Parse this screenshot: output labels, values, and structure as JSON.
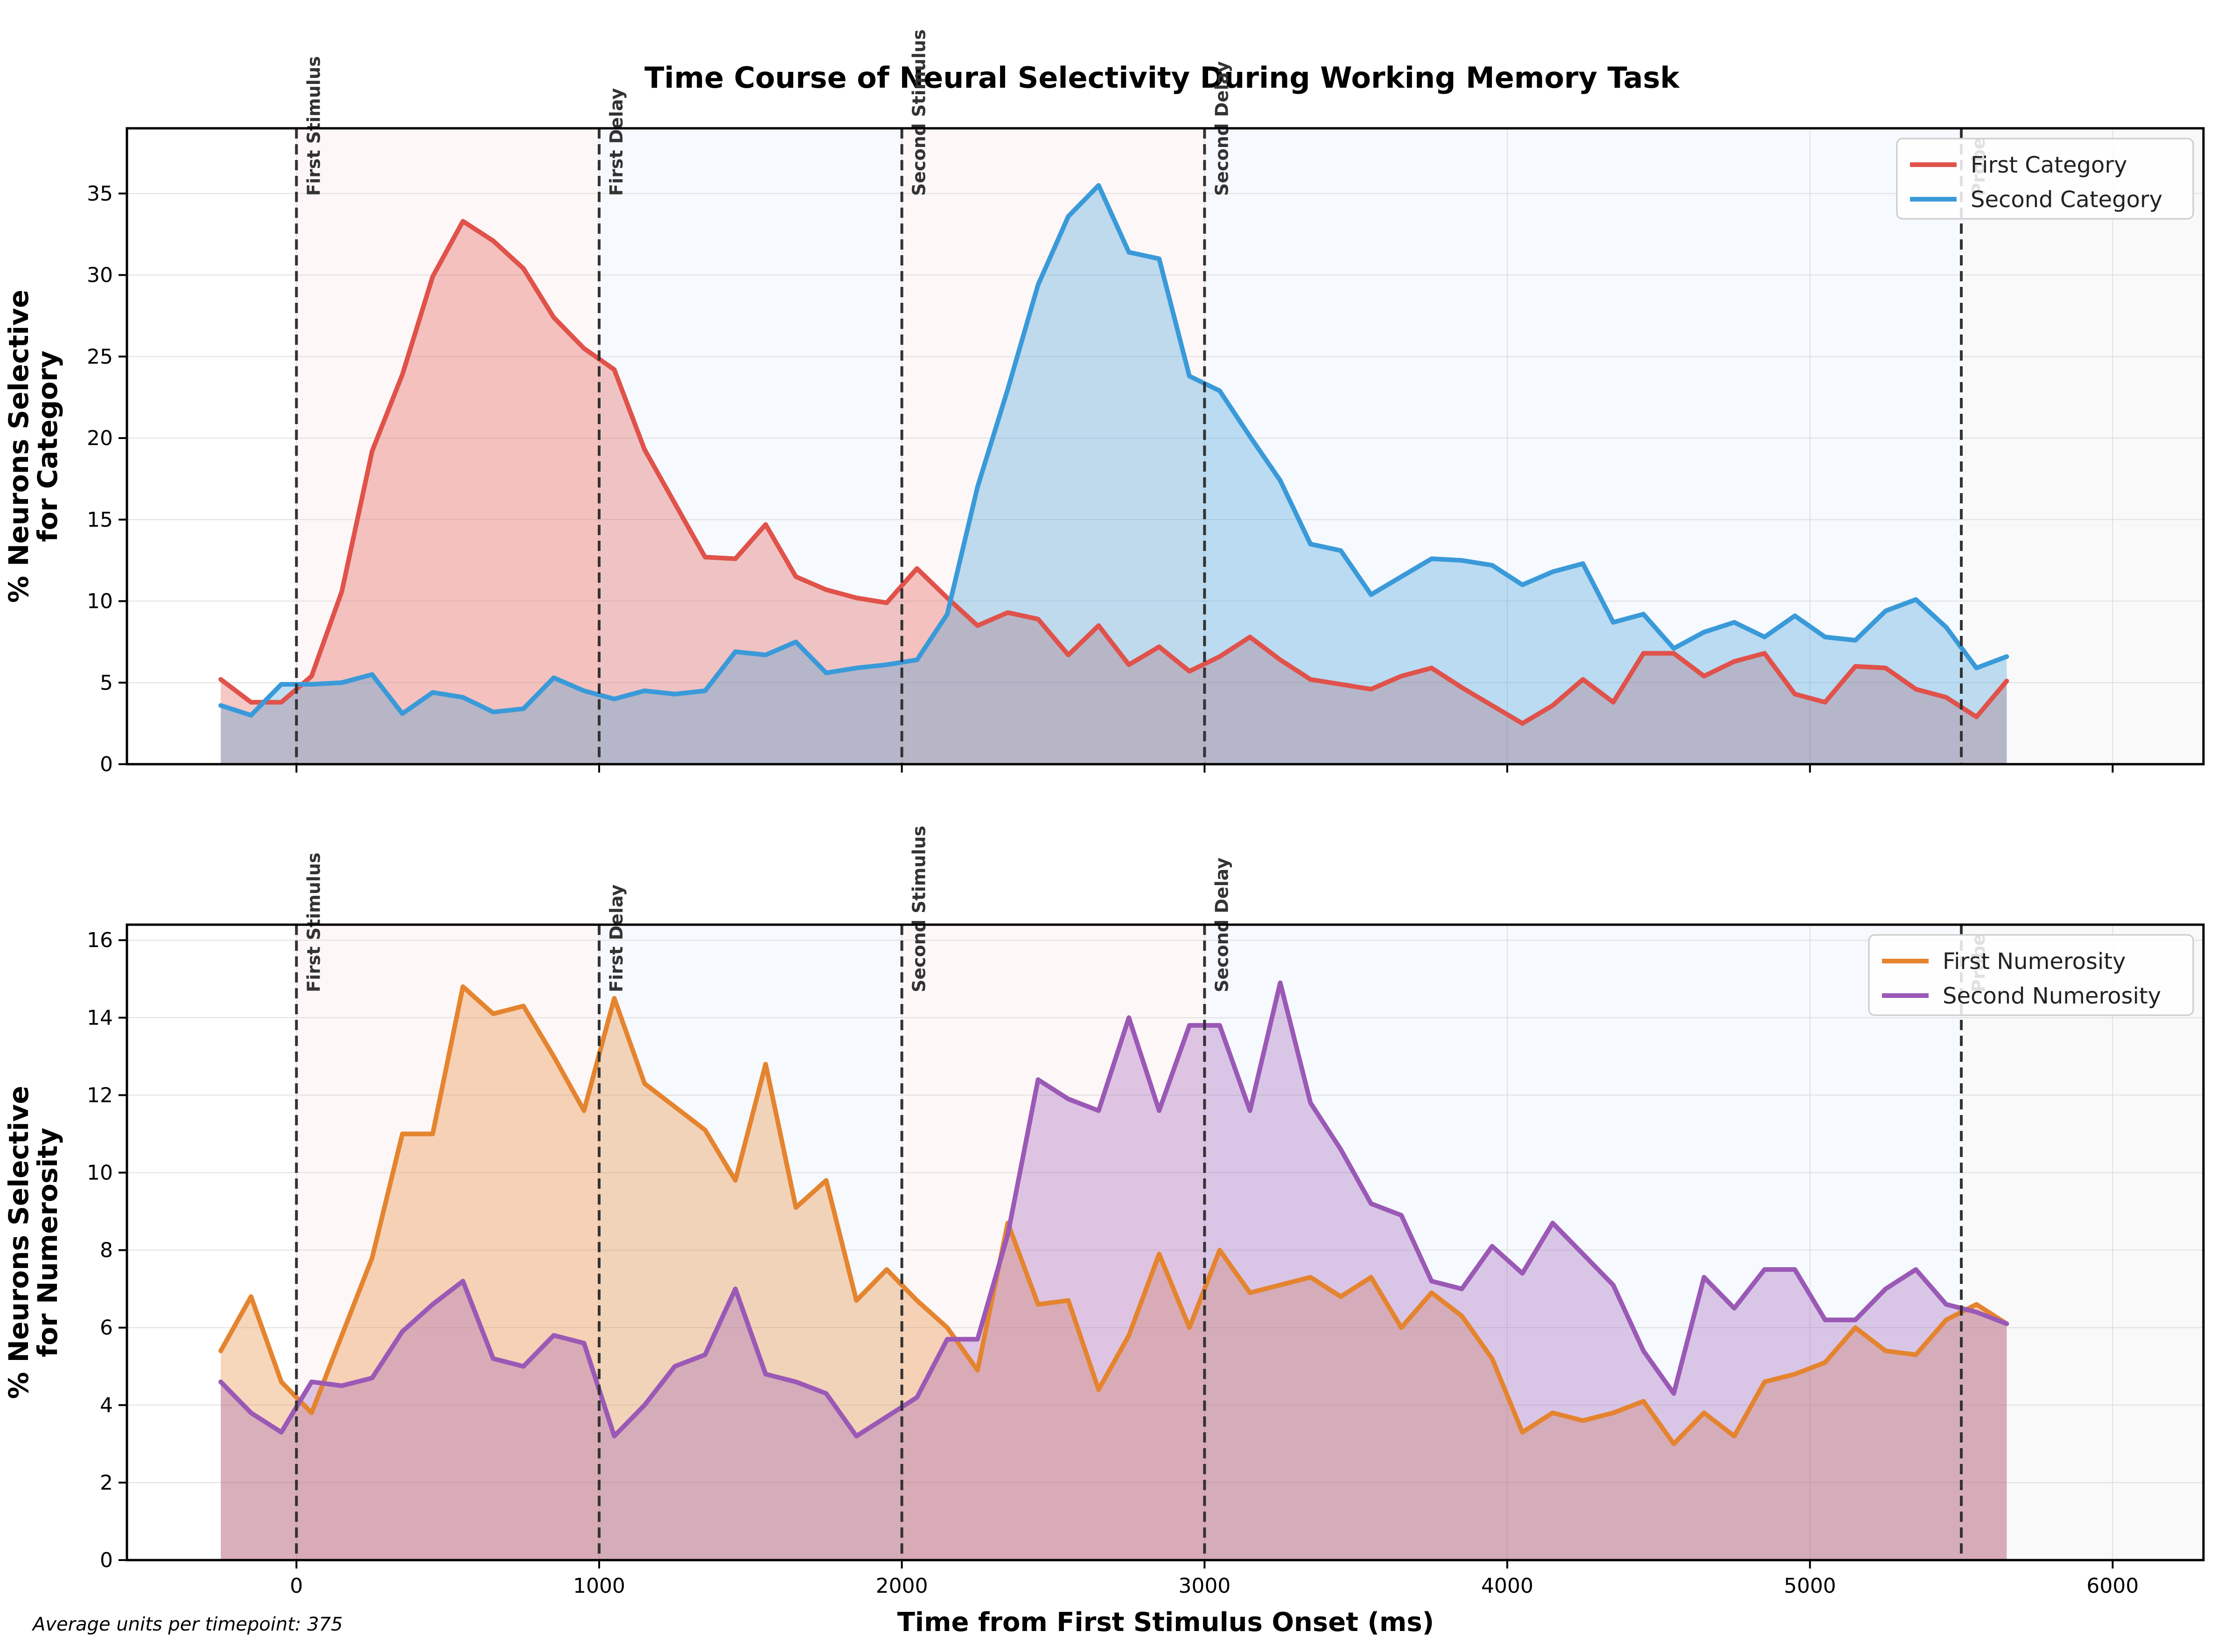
{
  "chart_data": {
    "type": "line",
    "title": "Time Course of Neural Selectivity During Working Memory Task",
    "xlabel": "Time from First Stimulus Onset (ms)",
    "xlim": [
      -560,
      6300
    ],
    "xticks": [
      0,
      1000,
      2000,
      3000,
      4000,
      5000,
      6000
    ],
    "grid": true,
    "footnote": "Average units per timepoint: 375",
    "events": [
      {
        "label": "First Stimulus",
        "x": 0
      },
      {
        "label": "First Delay",
        "x": 1000
      },
      {
        "label": "Second Stimulus",
        "x": 2000
      },
      {
        "label": "Second Delay",
        "x": 3000
      },
      {
        "label": "Probe",
        "x": 5500
      }
    ],
    "epoch_shading": [
      {
        "from": 0,
        "to": 1000,
        "color": "#fdeeee"
      },
      {
        "from": 1000,
        "to": 2000,
        "color": "#eaf2fa"
      },
      {
        "from": 2000,
        "to": 3000,
        "color": "#fdeeee"
      },
      {
        "from": 3000,
        "to": 5500,
        "color": "#eaf2fa"
      },
      {
        "from": 5500,
        "to": 6300,
        "color": "#f1f1f1"
      }
    ],
    "x": [
      -250,
      -150,
      -50,
      50,
      150,
      250,
      350,
      450,
      550,
      650,
      750,
      850,
      950,
      1050,
      1150,
      1250,
      1350,
      1450,
      1550,
      1650,
      1750,
      1850,
      1950,
      2050,
      2150,
      2250,
      2350,
      2450,
      2550,
      2650,
      2750,
      2850,
      2950,
      3050,
      3150,
      3250,
      3350,
      3450,
      3550,
      3650,
      3750,
      3850,
      3950,
      4050,
      4150,
      4250,
      4350,
      4450,
      4550,
      4650,
      4750,
      4850,
      4950,
      5050,
      5150,
      5250,
      5350,
      5450,
      5550,
      5650
    ],
    "panels": [
      {
        "ylabel_line1": "% Neurons Selective",
        "ylabel_line2": "for Category",
        "ylim": [
          0,
          39
        ],
        "yticks": [
          0,
          5,
          10,
          15,
          20,
          25,
          30,
          35
        ],
        "legend_position": "upper right",
        "series": [
          {
            "name": "First Category",
            "color": "#e0524a",
            "values": [
              5.2,
              3.8,
              3.8,
              5.4,
              10.6,
              19.2,
              23.9,
              29.9,
              33.3,
              32.1,
              30.4,
              27.4,
              25.5,
              24.2,
              19.3,
              16.0,
              12.7,
              12.6,
              14.7,
              11.5,
              10.7,
              10.2,
              9.9,
              12.0,
              10.2,
              8.5,
              9.3,
              8.9,
              6.7,
              8.5,
              6.1,
              7.2,
              5.7,
              6.6,
              7.8,
              6.4,
              5.2,
              4.9,
              4.6,
              5.4,
              5.9,
              4.7,
              3.6,
              2.5,
              3.6,
              5.2,
              3.8,
              6.8,
              6.8,
              5.4,
              6.3,
              6.8,
              4.3,
              3.8,
              6.0,
              5.9,
              4.6,
              4.1,
              2.9,
              5.1
            ]
          },
          {
            "name": "Second Category",
            "color": "#3a9ad9",
            "values": [
              3.6,
              3.0,
              4.9,
              4.9,
              5.0,
              5.5,
              3.1,
              4.4,
              4.1,
              3.2,
              3.4,
              5.3,
              4.5,
              4.0,
              4.5,
              4.3,
              4.5,
              6.9,
              6.7,
              7.5,
              5.6,
              5.9,
              6.1,
              6.4,
              9.2,
              17.0,
              23.0,
              29.4,
              33.6,
              35.5,
              31.4,
              31.0,
              23.8,
              22.9,
              20.1,
              17.4,
              13.5,
              13.1,
              10.4,
              11.5,
              12.6,
              12.5,
              12.2,
              11.0,
              11.8,
              12.3,
              8.7,
              9.2,
              7.1,
              8.1,
              8.7,
              7.8,
              9.1,
              7.8,
              7.6,
              9.4,
              10.1,
              8.4,
              5.9,
              6.6
            ]
          }
        ]
      },
      {
        "ylabel_line1": "% Neurons Selective",
        "ylabel_line2": "for Numerosity",
        "ylim": [
          0,
          16.4
        ],
        "yticks": [
          0,
          2,
          4,
          6,
          8,
          10,
          12,
          14,
          16
        ],
        "legend_position": "upper right",
        "series": [
          {
            "name": "First Numerosity",
            "color": "#e5842f",
            "values": [
              5.4,
              6.8,
              4.6,
              3.8,
              5.8,
              7.8,
              11.0,
              11.0,
              14.8,
              14.1,
              14.3,
              13.0,
              11.6,
              14.5,
              12.3,
              11.7,
              11.1,
              9.8,
              12.8,
              9.1,
              9.8,
              6.7,
              7.5,
              6.7,
              6.0,
              4.9,
              8.7,
              6.6,
              6.7,
              4.4,
              5.8,
              7.9,
              6.0,
              8.0,
              6.9,
              7.1,
              7.3,
              6.8,
              7.3,
              6.0,
              6.9,
              6.3,
              5.2,
              3.3,
              3.8,
              3.6,
              3.8,
              4.1,
              3.0,
              3.8,
              3.2,
              4.6,
              4.8,
              5.1,
              6.0,
              5.4,
              5.3,
              6.2,
              6.6,
              6.1
            ]
          },
          {
            "name": "Second Numerosity",
            "color": "#9b59b6",
            "values": [
              4.6,
              3.8,
              3.3,
              4.6,
              4.5,
              4.7,
              5.9,
              6.6,
              7.2,
              5.2,
              5.0,
              5.8,
              5.6,
              3.2,
              4.0,
              5.0,
              5.3,
              7.0,
              4.8,
              4.6,
              4.3,
              3.2,
              3.7,
              4.2,
              5.7,
              5.7,
              8.4,
              12.4,
              11.9,
              11.6,
              14.0,
              11.6,
              13.8,
              13.8,
              11.6,
              14.9,
              11.8,
              10.6,
              9.2,
              8.9,
              7.2,
              7.0,
              8.1,
              7.4,
              8.7,
              7.9,
              7.1,
              5.4,
              4.3,
              7.3,
              6.5,
              7.5,
              7.5,
              6.2,
              6.2,
              7.0,
              7.5,
              6.6,
              6.4,
              6.1
            ]
          }
        ]
      }
    ]
  }
}
